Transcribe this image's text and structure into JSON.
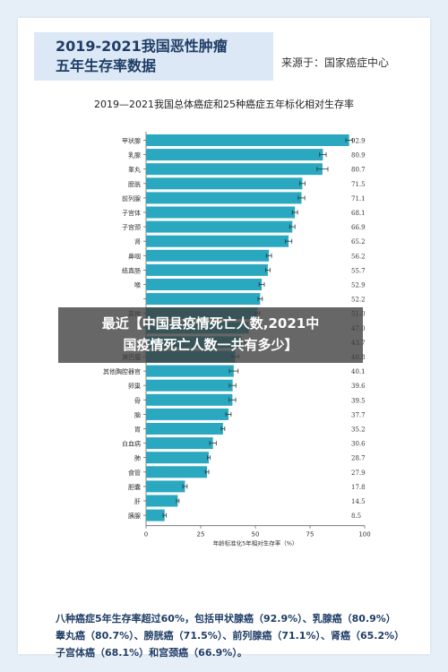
{
  "header": {
    "title": "2019-2021我国恶性肿瘤\n五年生存率数据",
    "source": "来源于：国家癌症中心"
  },
  "overlay": {
    "text": "最近【中国县疫情死亡人数,2021中\n国疫情死亡人数一共有多少】"
  },
  "summary": {
    "lines": [
      "八种癌症5年生存率超过60%，包括甲状腺癌（92.9%）、乳腺癌（80.9%）",
      "睾丸癌（80.7%）、膀胱癌（71.5%）、前列腺癌（71.1%）、肾癌（65.2%）",
      "子宫体癌（68.1%）和宫颈癌（66.9%）。"
    ]
  },
  "colors": {
    "bar": "#2aa8bf",
    "overlay": "#3c3c3c",
    "header_bg": "#dce8f5",
    "title": "#1f3d66"
  },
  "chart_data": {
    "type": "bar",
    "orientation": "horizontal",
    "title": "2019—2021我国总体癌症和25种癌症五年标化相对生存率",
    "xlabel": "年龄标准化5年相对生存率（%）",
    "ylabel": "",
    "xlim": [
      0,
      100
    ],
    "xticks": [
      0,
      25,
      50,
      75,
      100
    ],
    "grid": false,
    "error_bars": true,
    "categories": [
      "甲状腺",
      "乳腺",
      "睾丸",
      "膀胱",
      "前列腺",
      "子宫体",
      "子宫颈",
      "肾",
      "鼻咽",
      "结直肠",
      "喉",
      "",
      "其他",
      "",
      "",
      "淋巴瘤",
      "其他胸腔器官",
      "卵巢",
      "骨",
      "脑",
      "胃",
      "白血病",
      "肺",
      "食管",
      "胆囊",
      "肝",
      "胰腺"
    ],
    "values": [
      92.9,
      80.9,
      80.7,
      71.5,
      71.1,
      68.1,
      66.9,
      65.2,
      56.2,
      55.7,
      52.9,
      52.2,
      51.0,
      47.0,
      43.7,
      40.8,
      40.1,
      39.6,
      39.5,
      37.7,
      35.2,
      30.6,
      28.7,
      27.9,
      17.8,
      14.5,
      8.5
    ],
    "value_labels": [
      "92.9",
      "80.9",
      "80.7",
      "71.5",
      "71.1",
      "68.1",
      "66.9",
      "65.2",
      "56.2",
      "55.7",
      "52.9",
      "52.2",
      "51.0",
      "47.0",
      "43.7",
      "40.8",
      "40.1",
      "39.6",
      "39.5",
      "37.7",
      "35.2",
      "30.6",
      "28.7",
      "27.9",
      "17.8",
      "14.5",
      "8.5"
    ],
    "errors": [
      1.5,
      1.5,
      2.5,
      1.2,
      1.5,
      1.2,
      1.2,
      1.5,
      1.2,
      1.0,
      1.2,
      1.0,
      1.0,
      1.0,
      1.5,
      1.5,
      2.0,
      1.5,
      1.5,
      1.2,
      0.8,
      1.5,
      0.6,
      0.8,
      1.0,
      0.6,
      0.7
    ]
  }
}
